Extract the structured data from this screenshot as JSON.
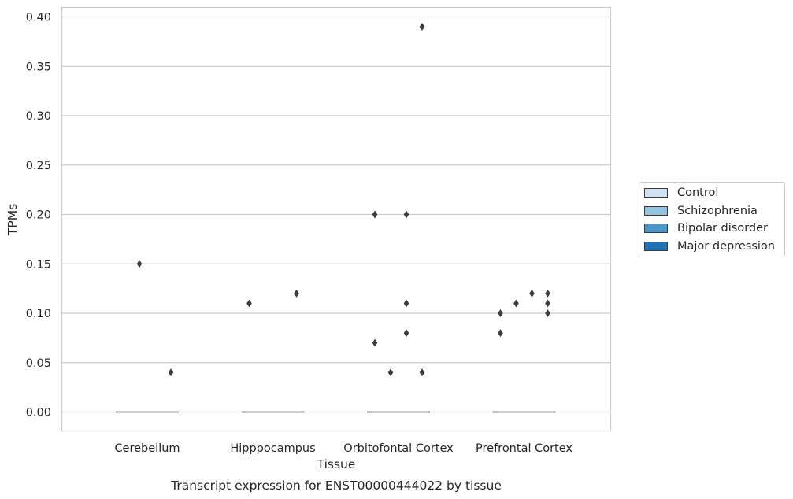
{
  "chart_data": {
    "type": "box",
    "caption": "Transcript expression for ENST00000444022 by tissue",
    "xlabel": "Tissue",
    "ylabel": "TPMs",
    "ylim": [
      -0.019,
      0.41
    ],
    "yticks": [
      "0.00",
      "0.05",
      "0.10",
      "0.15",
      "0.20",
      "0.25",
      "0.30",
      "0.35",
      "0.40"
    ],
    "ytick_values": [
      0,
      0.05,
      0.1,
      0.15,
      0.2,
      0.25,
      0.3,
      0.35,
      0.4
    ],
    "grid": true,
    "legend_position": "right",
    "categories": [
      "Cerebellum",
      "Hipppocampus",
      "Orbitofontal Cortex",
      "Prefrontal Cortex"
    ],
    "series": [
      {
        "name": "Control",
        "color": "#d0e1f2",
        "median": [
          0,
          0,
          0,
          0
        ],
        "outliers": [
          [],
          [
            0.11
          ],
          [
            0.2,
            0.07
          ],
          [
            0.08,
            0.1
          ]
        ]
      },
      {
        "name": "Schizophrenia",
        "color": "#94c4df",
        "median": [
          0,
          0,
          0,
          0
        ],
        "outliers": [
          [
            0.15
          ],
          [],
          [
            0.04
          ],
          [
            0.11
          ]
        ]
      },
      {
        "name": "Bipolar disorder",
        "color": "#4a98c9",
        "median": [
          0,
          0,
          0,
          0
        ],
        "outliers": [
          [],
          [],
          [
            0.2,
            0.11,
            0.08
          ],
          [
            0.12
          ]
        ]
      },
      {
        "name": "Major depression",
        "color": "#2171b5",
        "median": [
          0,
          0,
          0,
          0
        ],
        "outliers": [
          [
            0.04
          ],
          [
            0.12
          ],
          [
            0.39,
            0.04
          ],
          [
            0.12,
            0.11,
            0.1
          ]
        ]
      }
    ]
  }
}
